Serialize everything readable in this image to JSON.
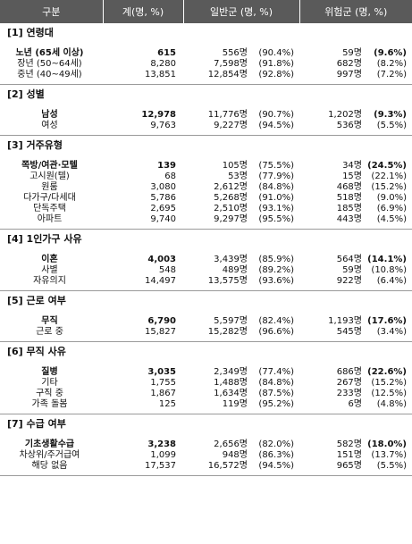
{
  "header": {
    "col1": "구분",
    "col2": "계(명, %)",
    "col3": "일반군 (명, %)",
    "col4": "위험군 (명, %)"
  },
  "sections": [
    {
      "title": "[1] 연령대",
      "rows": [
        {
          "label": "노년 (65세 이상)",
          "total": "615",
          "gen": "556명",
          "genp": "(90.4%)",
          "risk": "59명",
          "riskp": "(9.6%)",
          "hl": true
        },
        {
          "label": "장년 (50~64세)",
          "total": "8,280",
          "gen": "7,598명",
          "genp": "(91.8%)",
          "risk": "682명",
          "riskp": "(8.2%)"
        },
        {
          "label": "중년 (40~49세)",
          "total": "13,851",
          "gen": "12,854명",
          "genp": "(92.8%)",
          "risk": "997명",
          "riskp": "(7.2%)"
        }
      ]
    },
    {
      "title": "[2] 성별",
      "rows": [
        {
          "label": "남성",
          "total": "12,978",
          "gen": "11,776명",
          "genp": "(90.7%)",
          "risk": "1,202명",
          "riskp": "(9.3%)",
          "hl": true
        },
        {
          "label": "여성",
          "total": "9,763",
          "gen": "9,227명",
          "genp": "(94.5%)",
          "risk": "536명",
          "riskp": "(5.5%)"
        }
      ]
    },
    {
      "title": "[3] 거주유형",
      "rows": [
        {
          "label": "쪽방/여관·모텔",
          "total": "139",
          "gen": "105명",
          "genp": "(75.5%)",
          "risk": "34명",
          "riskp": "(24.5%)",
          "hl": true
        },
        {
          "label": "고시원(텔)",
          "total": "68",
          "gen": "53명",
          "genp": "(77.9%)",
          "risk": "15명",
          "riskp": "(22.1%)"
        },
        {
          "label": "원룸",
          "total": "3,080",
          "gen": "2,612명",
          "genp": "(84.8%)",
          "risk": "468명",
          "riskp": "(15.2%)"
        },
        {
          "label": "다가구/다세대",
          "total": "5,786",
          "gen": "5,268명",
          "genp": "(91.0%)",
          "risk": "518명",
          "riskp": "(9.0%)"
        },
        {
          "label": "단독주택",
          "total": "2,695",
          "gen": "2,510명",
          "genp": "(93.1%)",
          "risk": "185명",
          "riskp": "(6.9%)"
        },
        {
          "label": "아파트",
          "total": "9,740",
          "gen": "9,297명",
          "genp": "(95.5%)",
          "risk": "443명",
          "riskp": "(4.5%)"
        }
      ]
    },
    {
      "title": "[4] 1인가구 사유",
      "rows": [
        {
          "label": "이혼",
          "total": "4,003",
          "gen": "3,439명",
          "genp": "(85.9%)",
          "risk": "564명",
          "riskp": "(14.1%)",
          "hl": true
        },
        {
          "label": "사별",
          "total": "548",
          "gen": "489명",
          "genp": "(89.2%)",
          "risk": "59명",
          "riskp": "(10.8%)"
        },
        {
          "label": "자유의지",
          "total": "14,497",
          "gen": "13,575명",
          "genp": "(93.6%)",
          "risk": "922명",
          "riskp": "(6.4%)"
        }
      ]
    },
    {
      "title": "[5] 근로 여부",
      "rows": [
        {
          "label": "무직",
          "total": "6,790",
          "gen": "5,597명",
          "genp": "(82.4%)",
          "risk": "1,193명",
          "riskp": "(17.6%)",
          "hl": true
        },
        {
          "label": "근로 중",
          "total": "15,827",
          "gen": "15,282명",
          "genp": "(96.6%)",
          "risk": "545명",
          "riskp": "(3.4%)"
        }
      ]
    },
    {
      "title": "[6] 무직 사유",
      "rows": [
        {
          "label": "질병",
          "total": "3,035",
          "gen": "2,349명",
          "genp": "(77.4%)",
          "risk": "686명",
          "riskp": "(22.6%)",
          "hl": true
        },
        {
          "label": "기타",
          "total": "1,755",
          "gen": "1,488명",
          "genp": "(84.8%)",
          "risk": "267명",
          "riskp": "(15.2%)"
        },
        {
          "label": "구직 중",
          "total": "1,867",
          "gen": "1,634명",
          "genp": "(87.5%)",
          "risk": "233명",
          "riskp": "(12.5%)"
        },
        {
          "label": "가족 돌봄",
          "total": "125",
          "gen": "119명",
          "genp": "(95.2%)",
          "risk": "6명",
          "riskp": "(4.8%)"
        }
      ]
    },
    {
      "title": "[7] 수급 여부",
      "rows": [
        {
          "label": "기초생활수급",
          "total": "3,238",
          "gen": "2,656명",
          "genp": "(82.0%)",
          "risk": "582명",
          "riskp": "(18.0%)",
          "hl": true
        },
        {
          "label": "차상위/주거급여",
          "total": "1,099",
          "gen": "948명",
          "genp": "(86.3%)",
          "risk": "151명",
          "riskp": "(13.7%)"
        },
        {
          "label": "해당 없음",
          "total": "17,537",
          "gen": "16,572명",
          "genp": "(94.5%)",
          "risk": "965명",
          "riskp": "(5.5%)"
        }
      ]
    }
  ]
}
